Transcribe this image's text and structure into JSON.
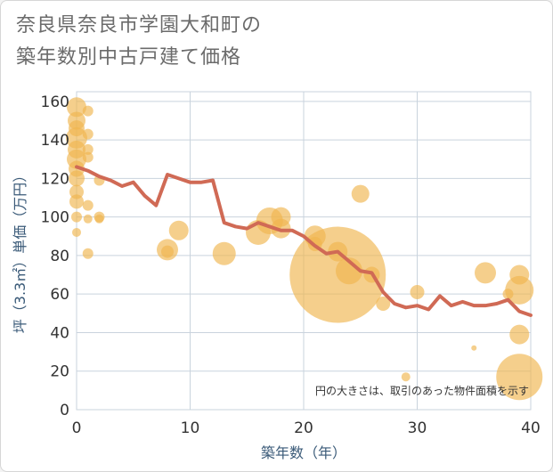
{
  "title": {
    "line1": "奈良県奈良市学園大和町の",
    "line2": "築年数別中古戸建て価格"
  },
  "colors": {
    "bubble": "#f0b54e",
    "line": "#d06a55",
    "grid": "#c9d3dd",
    "axis_text": "#3a5a78",
    "plot_bg": "#ffffff"
  },
  "chart_data": {
    "type": "scatter",
    "xlabel": "築年数（年）",
    "ylabel": "坪（3.3㎡）単価（万円）",
    "xlim": [
      0,
      40
    ],
    "ylim": [
      0,
      165
    ],
    "x_ticks": [
      0,
      10,
      20,
      30,
      40
    ],
    "y_ticks": [
      0,
      20,
      40,
      60,
      80,
      100,
      120,
      140,
      160
    ],
    "grid": true,
    "annotation": "円の大きさは、取引のあった物件面積を示す",
    "series": [
      {
        "kind": "bubble",
        "points": [
          {
            "x": 0,
            "y": 157,
            "size": 11
          },
          {
            "x": 0,
            "y": 150,
            "size": 10
          },
          {
            "x": 0,
            "y": 146,
            "size": 9
          },
          {
            "x": 0,
            "y": 141,
            "size": 12
          },
          {
            "x": 0,
            "y": 135,
            "size": 10
          },
          {
            "x": 0,
            "y": 130,
            "size": 11
          },
          {
            "x": 0,
            "y": 125,
            "size": 9
          },
          {
            "x": 0,
            "y": 120,
            "size": 9
          },
          {
            "x": 0,
            "y": 113,
            "size": 8
          },
          {
            "x": 0,
            "y": 108,
            "size": 8
          },
          {
            "x": 0,
            "y": 100,
            "size": 6
          },
          {
            "x": 0,
            "y": 92,
            "size": 5
          },
          {
            "x": 1,
            "y": 155,
            "size": 6
          },
          {
            "x": 1,
            "y": 143,
            "size": 6
          },
          {
            "x": 1,
            "y": 135,
            "size": 6
          },
          {
            "x": 1,
            "y": 131,
            "size": 6
          },
          {
            "x": 1,
            "y": 106,
            "size": 6
          },
          {
            "x": 1,
            "y": 99,
            "size": 5
          },
          {
            "x": 1,
            "y": 81,
            "size": 6
          },
          {
            "x": 2,
            "y": 119,
            "size": 6
          },
          {
            "x": 2,
            "y": 100,
            "size": 6
          },
          {
            "x": 2,
            "y": 99,
            "size": 5
          },
          {
            "x": 8,
            "y": 83,
            "size": 12
          },
          {
            "x": 8,
            "y": 82,
            "size": 7
          },
          {
            "x": 9,
            "y": 93,
            "size": 11
          },
          {
            "x": 13,
            "y": 81,
            "size": 13
          },
          {
            "x": 16,
            "y": 92,
            "size": 14
          },
          {
            "x": 17,
            "y": 98,
            "size": 15
          },
          {
            "x": 18,
            "y": 100,
            "size": 11
          },
          {
            "x": 18,
            "y": 94,
            "size": 11
          },
          {
            "x": 21,
            "y": 90,
            "size": 12
          },
          {
            "x": 21,
            "y": 86,
            "size": 8
          },
          {
            "x": 23,
            "y": 82,
            "size": 11
          },
          {
            "x": 23,
            "y": 70,
            "size": 54
          },
          {
            "x": 24,
            "y": 72,
            "size": 15
          },
          {
            "x": 25,
            "y": 112,
            "size": 10
          },
          {
            "x": 26,
            "y": 70,
            "size": 9
          },
          {
            "x": 27,
            "y": 55,
            "size": 8
          },
          {
            "x": 29,
            "y": 17,
            "size": 5
          },
          {
            "x": 30,
            "y": 61,
            "size": 8
          },
          {
            "x": 35,
            "y": 32,
            "size": 3
          },
          {
            "x": 36,
            "y": 71,
            "size": 12
          },
          {
            "x": 38,
            "y": 60,
            "size": 6
          },
          {
            "x": 39,
            "y": 70,
            "size": 11
          },
          {
            "x": 39,
            "y": 62,
            "size": 16
          },
          {
            "x": 39,
            "y": 39,
            "size": 11
          },
          {
            "x": 39,
            "y": 17,
            "size": 26
          }
        ]
      },
      {
        "kind": "line",
        "x": [
          0,
          1,
          2,
          3,
          4,
          5,
          6,
          7,
          8,
          9,
          10,
          11,
          12,
          13,
          14,
          15,
          16,
          17,
          18,
          19,
          20,
          21,
          22,
          23,
          24,
          25,
          26,
          27,
          28,
          29,
          30,
          31,
          32,
          33,
          34,
          35,
          36,
          37,
          38,
          39,
          40
        ],
        "y": [
          126,
          124,
          121,
          119,
          116,
          118,
          111,
          106,
          122,
          120,
          118,
          118,
          119,
          97,
          95,
          94,
          97,
          95,
          93,
          93,
          90,
          85,
          81,
          82,
          77,
          72,
          71,
          61,
          55,
          53,
          54,
          52,
          59,
          54,
          56,
          54,
          54,
          55,
          57,
          51,
          49
        ]
      }
    ]
  }
}
